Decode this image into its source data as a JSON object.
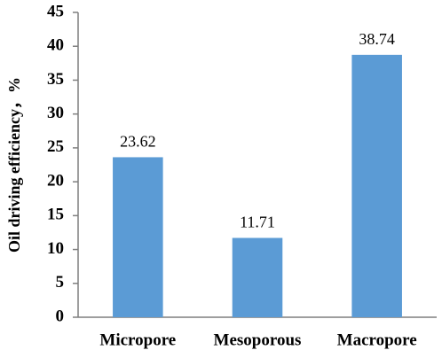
{
  "chart_data": {
    "type": "bar",
    "y_label": "Oil driving efficiency，%",
    "categories": [
      "Micropore",
      "Mesoporous",
      "Macropore"
    ],
    "values": [
      23.62,
      11.71,
      38.74
    ],
    "color": "#5b9bd5",
    "ylim": [
      0,
      45
    ],
    "yticks": [
      0,
      5,
      10,
      15,
      20,
      25,
      30,
      35,
      40,
      45
    ],
    "grid": false,
    "data_labels": true
  }
}
